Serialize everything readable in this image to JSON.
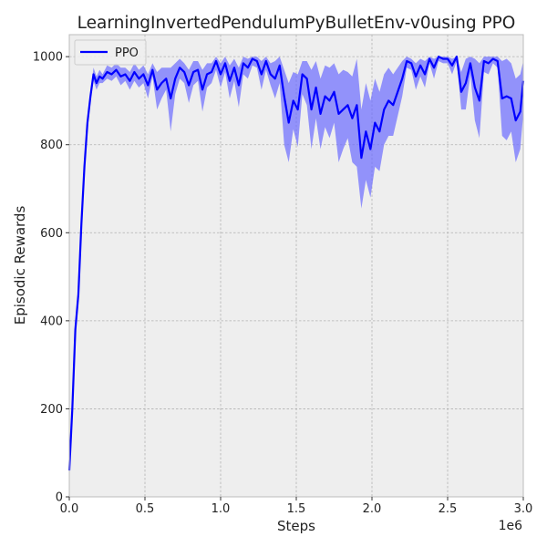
{
  "chart_data": {
    "type": "line",
    "title": "LearningInvertedPendulumPyBulletEnv-v0using PPO",
    "xlabel": "Steps",
    "ylabel": "Episodic Rewards",
    "x_offset_label": "1e6",
    "xlim": [
      0,
      3000000
    ],
    "ylim": [
      0,
      1050
    ],
    "xticks": [
      0,
      500000,
      1000000,
      1500000,
      2000000,
      2500000,
      3000000
    ],
    "xtick_labels": [
      "0.0",
      "0.5",
      "1.0",
      "1.5",
      "2.0",
      "2.5",
      "3.0"
    ],
    "yticks": [
      0,
      200,
      400,
      600,
      800,
      1000
    ],
    "ytick_labels": [
      "0",
      "200",
      "400",
      "600",
      "800",
      "1000"
    ],
    "grid": true,
    "legend_position": "top-left",
    "colors": {
      "line": "#0000ff",
      "band": "#6b6bff",
      "plot_bg": "#eeeeee"
    },
    "series": [
      {
        "name": "PPO",
        "x": [
          0,
          20000,
          40000,
          60000,
          80000,
          100000,
          120000,
          140000,
          160000,
          180000,
          200000,
          220000,
          250000,
          280000,
          310000,
          340000,
          370000,
          400000,
          430000,
          460000,
          490000,
          520000,
          550000,
          580000,
          610000,
          640000,
          670000,
          700000,
          730000,
          760000,
          790000,
          820000,
          850000,
          880000,
          910000,
          940000,
          970000,
          1000000,
          1030000,
          1060000,
          1090000,
          1120000,
          1150000,
          1180000,
          1210000,
          1240000,
          1270000,
          1300000,
          1330000,
          1360000,
          1390000,
          1420000,
          1450000,
          1480000,
          1510000,
          1540000,
          1570000,
          1600000,
          1630000,
          1660000,
          1690000,
          1720000,
          1750000,
          1780000,
          1810000,
          1840000,
          1870000,
          1900000,
          1930000,
          1960000,
          1990000,
          2020000,
          2050000,
          2080000,
          2110000,
          2140000,
          2170000,
          2200000,
          2230000,
          2260000,
          2290000,
          2320000,
          2350000,
          2380000,
          2410000,
          2440000,
          2470000,
          2500000,
          2530000,
          2560000,
          2590000,
          2620000,
          2650000,
          2680000,
          2710000,
          2740000,
          2770000,
          2800000,
          2830000,
          2860000,
          2890000,
          2920000,
          2950000,
          2980000,
          3000000
        ],
        "y": [
          60,
          200,
          380,
          460,
          620,
          750,
          850,
          910,
          960,
          940,
          955,
          950,
          965,
          960,
          970,
          955,
          960,
          945,
          965,
          950,
          960,
          935,
          970,
          925,
          940,
          950,
          905,
          950,
          975,
          965,
          935,
          965,
          970,
          925,
          960,
          965,
          990,
          960,
          985,
          945,
          975,
          935,
          985,
          975,
          995,
          990,
          960,
          990,
          960,
          950,
          980,
          910,
          850,
          900,
          880,
          960,
          950,
          880,
          930,
          870,
          910,
          900,
          920,
          870,
          880,
          890,
          860,
          890,
          770,
          830,
          790,
          850,
          830,
          880,
          900,
          890,
          920,
          950,
          990,
          985,
          955,
          980,
          960,
          995,
          975,
          1000,
          995,
          995,
          980,
          1000,
          920,
          940,
          985,
          930,
          900,
          990,
          985,
          995,
          990,
          905,
          910,
          905,
          855,
          875,
          945
        ],
        "lower": [
          60,
          190,
          370,
          450,
          610,
          740,
          840,
          900,
          945,
          925,
          940,
          940,
          950,
          945,
          955,
          935,
          945,
          925,
          945,
          930,
          940,
          905,
          955,
          880,
          905,
          925,
          830,
          915,
          950,
          940,
          895,
          935,
          945,
          875,
          930,
          940,
          970,
          930,
          965,
          905,
          945,
          885,
          960,
          950,
          980,
          975,
          925,
          970,
          935,
          905,
          940,
          800,
          760,
          835,
          795,
          915,
          890,
          790,
          860,
          790,
          840,
          815,
          850,
          760,
          790,
          815,
          760,
          750,
          655,
          720,
          680,
          750,
          740,
          800,
          820,
          820,
          865,
          910,
          975,
          970,
          925,
          955,
          930,
          985,
          950,
          990,
          985,
          985,
          960,
          990,
          880,
          880,
          960,
          855,
          815,
          965,
          960,
          985,
          975,
          820,
          810,
          830,
          760,
          790,
          870
        ],
        "upper": [
          60,
          210,
          390,
          470,
          630,
          760,
          860,
          920,
          975,
          955,
          970,
          960,
          980,
          975,
          985,
          975,
          975,
          965,
          985,
          970,
          980,
          960,
          985,
          965,
          975,
          975,
          975,
          985,
          995,
          985,
          970,
          990,
          990,
          970,
          985,
          985,
          1000,
          985,
          1000,
          980,
          995,
          975,
          1000,
          995,
          1000,
          1000,
          990,
          1000,
          985,
          990,
          1000,
          970,
          940,
          965,
          960,
          990,
          990,
          970,
          990,
          950,
          980,
          975,
          985,
          960,
          970,
          965,
          955,
          995,
          880,
          940,
          900,
          950,
          920,
          960,
          975,
          960,
          975,
          990,
          1000,
          995,
          985,
          995,
          990,
          1000,
          995,
          1000,
          1000,
          1000,
          995,
          1000,
          965,
          995,
          1000,
          995,
          985,
          1000,
          1000,
          1000,
          1000,
          990,
          995,
          985,
          950,
          960,
          990
        ]
      }
    ]
  }
}
